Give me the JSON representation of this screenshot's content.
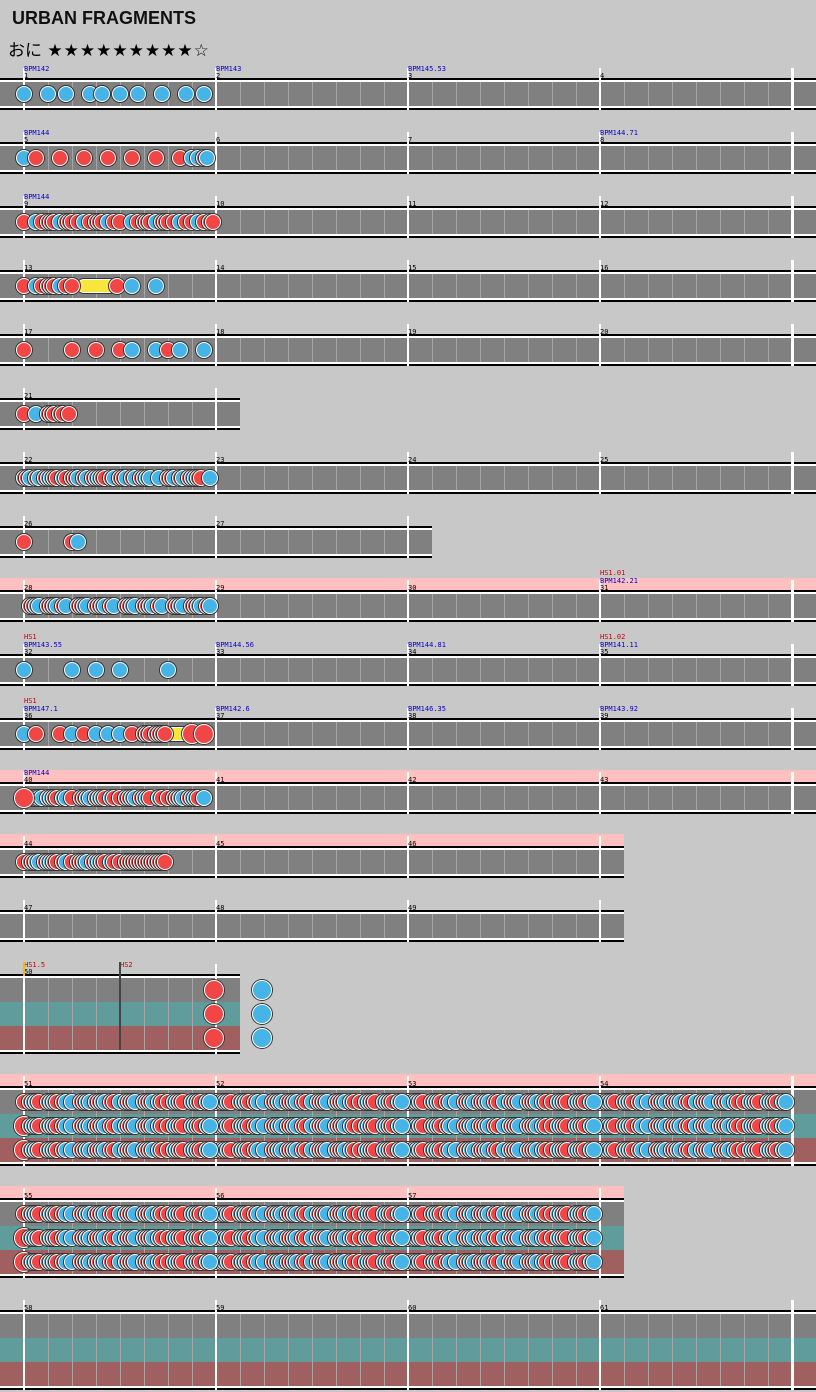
{
  "title": "URBAN FRAGMENTS",
  "difficulty": {
    "name": "おに",
    "stars": "★★★★★★★★★☆"
  },
  "colors": {
    "don": "#f04646",
    "ka": "#46b4e6",
    "roll": "#f8e63c",
    "lane": "#808080",
    "highlight": "#ffc0c0",
    "lane_red": "#a06060",
    "lane_teal": "#609c9c",
    "bpm": "#0000c8",
    "hs": "#c80000"
  },
  "rows": [
    {
      "first": 1,
      "count": 4,
      "labels": [
        {
          "bar": 0,
          "bpm": "BPM142"
        },
        {
          "bar": 1,
          "bpm": "BPM143"
        },
        {
          "bar": 2,
          "bpm": "BPM145.53"
        }
      ],
      "notes": [
        "k@0",
        "k@4",
        "k@7",
        "k@11",
        "k@13",
        "k@16",
        "k@19",
        "k@23",
        "k@27",
        "k@30"
      ]
    },
    {
      "first": 5,
      "count": 4,
      "labels": [
        {
          "bar": 0,
          "bpm": "BPM144"
        },
        {
          "bar": 3,
          "bpm": "BPM144.71"
        }
      ],
      "notes": [
        "k@0",
        "d@2",
        "d@6",
        "d@10",
        "d@14",
        "d@18",
        "d@22",
        "d@26",
        "k@28",
        "k@29",
        "d@30",
        "k@30.5"
      ]
    },
    {
      "first": 9,
      "count": 4,
      "labels": [
        {
          "bar": 0,
          "bpm": "BPM144"
        }
      ],
      "notes": [
        "d@0",
        "k@2",
        "d@3",
        "d@4",
        "d@4.5",
        "d@5",
        "k@6",
        "d@7",
        "d@7.5",
        "d@8",
        "d@9",
        "k@10",
        "d@11",
        "d@12",
        "d@12.5",
        "d@13",
        "k@14",
        "d@15",
        "d@16",
        "k@18",
        "d@19",
        "d@20",
        "d@20.5",
        "d@21",
        "k@22",
        "d@23",
        "d@23.5",
        "d@24",
        "d@25",
        "k@26",
        "d@27",
        "d@28",
        "k@29",
        "d@30",
        "d@31",
        "d@31.5"
      ]
    },
    {
      "first": 13,
      "count": 4,
      "notes": [
        "d@0",
        "k@2",
        "d@3",
        "d@4",
        "d@4.5",
        "d@5",
        "k@6",
        "d@7",
        "d@8"
      ],
      "rolls": [
        [
          10,
          14.3
        ]
      ],
      "notes2": [
        "d@15.5",
        "k@18",
        "k@22"
      ]
    },
    {
      "first": 17,
      "count": 4,
      "notes": [
        "d@0",
        "d@8",
        "d@12",
        "d@16",
        "k@18",
        "k@22",
        "d@24",
        "k@26",
        "k@30"
      ]
    },
    {
      "first": 21,
      "count": 1,
      "notes": [
        "d@0",
        "k@2",
        "d@4",
        "d@4.5",
        "d@5",
        "d@6",
        "d@6.5",
        "d@7.5"
      ]
    },
    {
      "first": 22,
      "count": 4,
      "notes": [
        "d@0",
        "d@0.5",
        "k@1",
        "d@2",
        "k@2.5",
        "d@3.5",
        "k@4",
        "k@4.5",
        "d@5",
        "d@5.5",
        "k@6.5",
        "d@7",
        "d@8",
        "d@8.5",
        "k@9",
        "d@10",
        "k@10.5",
        "d@11.5",
        "k@12",
        "k@12.5",
        "d@13",
        "d@13.5",
        "d@14.5",
        "k@15",
        "d@16",
        "d@16.5",
        "k@17",
        "d@18",
        "k@18.5",
        "d@19.5",
        "k@20",
        "k@20.5",
        "k@21",
        "k@22.5",
        "d@24",
        "d@24.5",
        "k@25",
        "d@26",
        "k@26.5",
        "d@27.5",
        "k@28",
        "k@28.5",
        "d@29",
        "d@29.5",
        "k@31"
      ]
    },
    {
      "first": 26,
      "count": 2,
      "notes": [
        "d@0",
        "d@8",
        "k@9"
      ]
    },
    {
      "first": 28,
      "count": 4,
      "hl": true,
      "labels": [
        {
          "bar": 3,
          "hs": "HS1.01",
          "bpm": "BPM142.21"
        }
      ],
      "notes": [
        "d@1",
        "d@1.5",
        "k@2",
        "k@2.5",
        "d@4",
        "d@4.5",
        "k@5",
        "k@5.5",
        "d@6.5",
        "k@7",
        "d@9",
        "d@9.5",
        "k@10",
        "k@10.5",
        "d@12",
        "d@12.5",
        "k@13",
        "k@13.5",
        "d@14.5",
        "k@15",
        "d@17",
        "d@17.5",
        "k@18",
        "k@18.5",
        "d@20",
        "d@20.5",
        "k@21",
        "k@21.5",
        "d@22.5",
        "k@23",
        "d@25",
        "d@25.5",
        "k@26",
        "k@26.5",
        "d@28",
        "d@28.5",
        "k@29",
        "k@29.5",
        "d@30.5",
        "k@31"
      ]
    },
    {
      "first": 32,
      "count": 4,
      "labels": [
        {
          "bar": 0,
          "hs": "HS1",
          "bpm": "BPM143.55"
        },
        {
          "bar": 1,
          "bpm": "BPM144.56"
        },
        {
          "bar": 2,
          "bpm": "BPM144.81"
        },
        {
          "bar": 3,
          "hs": "HS1.02",
          "bpm": "BPM141.11"
        }
      ],
      "notes": [
        "k@0",
        "k@8",
        "k@12",
        "k@16",
        "k@24"
      ]
    },
    {
      "first": 36,
      "count": 4,
      "labels": [
        {
          "bar": 0,
          "hs": "HS1",
          "bpm": "BPM147.1"
        },
        {
          "bar": 1,
          "bpm": "BPM142.6"
        },
        {
          "bar": 2,
          "bpm": "BPM146.35"
        },
        {
          "bar": 3,
          "bpm": "BPM143.92"
        }
      ],
      "notes": [
        "k@0",
        "d@2",
        "d@6",
        "k@8",
        "d@10",
        "k@12",
        "k@14",
        "k@16",
        "d@18",
        "d@20",
        "d@20.5",
        "d@21",
        "d@22",
        "d@22.5",
        "d@23",
        "d@23.5"
      ],
      "rolls": [
        [
          24,
          27.2
        ]
      ],
      "big": [
        "D@28",
        "D@30"
      ]
    },
    {
      "first": 40,
      "count": 4,
      "hl": true,
      "labels": [
        {
          "bar": 0,
          "bpm": "BPM144"
        }
      ],
      "notes": [
        "d@1.5",
        "d@2",
        "k@2.5",
        "k@3",
        "k@4",
        "k@4.5",
        "d@5",
        "d@5.5",
        "k@6.5",
        "k@7",
        "d@8",
        "d@9.5",
        "d@10",
        "k@10.5",
        "k@11",
        "d@12",
        "k@12.5",
        "k@13",
        "d@13.5",
        "k@14.5",
        "d@15",
        "d@16",
        "d@17",
        "d@17.5",
        "k@18",
        "k@18.5",
        "d@19.5",
        "k@20",
        "k@20.5",
        "d@21",
        "k@22.5",
        "d@23",
        "d@24",
        "d@25",
        "d@25.5",
        "k@26",
        "k@26.5",
        "d@27.5",
        "k@28",
        "k@28.5",
        "d@29",
        "k@30"
      ],
      "big": [
        "D@0"
      ]
    },
    {
      "first": 44,
      "count": 3,
      "hl": true,
      "notes": [
        "d@0",
        "d@1",
        "d@1.5",
        "k@2",
        "k@2.5",
        "d@3.5",
        "k@4",
        "k@4.5",
        "d@5",
        "d@5.5",
        "d@6.5",
        "k@7",
        "d@8",
        "d@9",
        "d@9.5",
        "k@10",
        "k@10.5",
        "d@11.5",
        "k@12",
        "k@12.5",
        "d@13",
        "d@13.5",
        "k@14.5",
        "d@15",
        "d@16",
        "d@17",
        "d@17.5",
        "d@18",
        "d@18.5",
        "d@19",
        "d@19.5",
        "d@20",
        "d@20.5",
        "d@21",
        "d@21.5",
        "d@22",
        "d@22.5",
        "d@23",
        "d@23.5"
      ]
    },
    {
      "first": 47,
      "count": 3,
      "notes": []
    },
    {
      "first": 50,
      "count": 1,
      "lanes": 3,
      "labels": [
        {
          "bar": 0,
          "hs": "HS1.5"
        }
      ],
      "hs2": "HS2"
    },
    {
      "first": 51,
      "count": 4,
      "lanes": 3,
      "hl": true
    },
    {
      "first": 55,
      "count": 3,
      "lanes": 3,
      "hl": true
    },
    {
      "first": 58,
      "count": 4,
      "lanes": 3
    }
  ]
}
